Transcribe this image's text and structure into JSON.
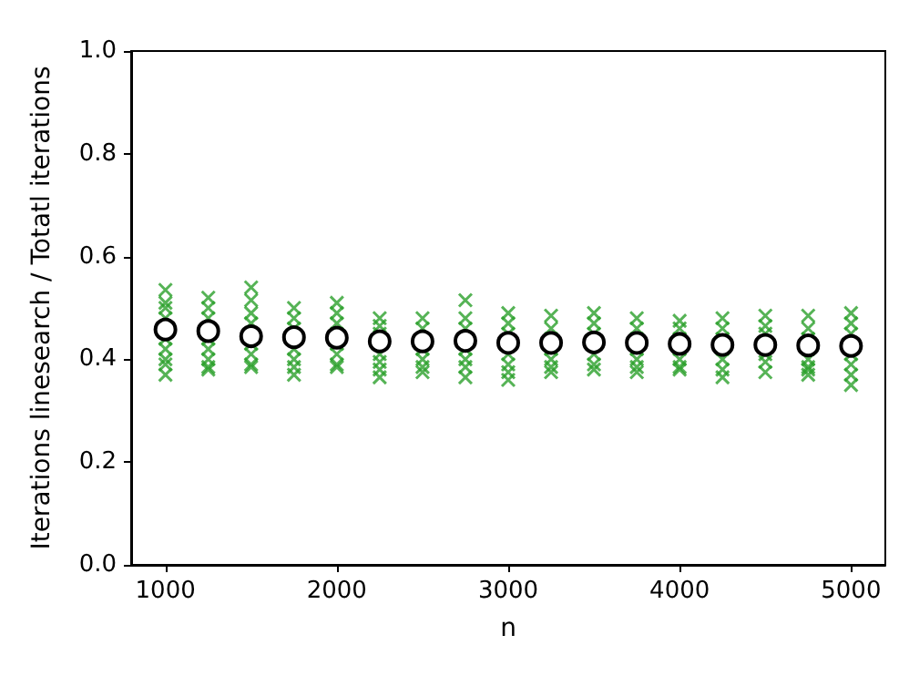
{
  "chart_data": {
    "type": "scatter",
    "xlabel": "n",
    "ylabel": "Iterations linesearch / Totatl iterations",
    "xlim": [
      800,
      5200
    ],
    "xticks": [
      1000,
      2000,
      3000,
      4000,
      5000
    ],
    "ylim": [
      0,
      1
    ],
    "yticks": [
      {
        "value": 0,
        "label": "0.0"
      },
      {
        "value": 0.2,
        "label": "0.2"
      },
      {
        "value": 0.4,
        "label": "0.4"
      },
      {
        "value": 0.6,
        "label": "0.6"
      },
      {
        "value": 0.8,
        "label": "0.8"
      },
      {
        "value": 1,
        "label": "1.0"
      }
    ],
    "grid": false,
    "series": [
      {
        "color": "#2ca02c",
        "marker": "cross",
        "x": [
          1000,
          1000,
          1000,
          1000,
          1000,
          1000,
          1000,
          1000,
          1000,
          1250,
          1250,
          1250,
          1250,
          1250,
          1250,
          1250,
          1250,
          1500,
          1500,
          1500,
          1500,
          1500,
          1500,
          1500,
          1500,
          1750,
          1750,
          1750,
          1750,
          1750,
          1750,
          1750,
          2000,
          2000,
          2000,
          2000,
          2000,
          2000,
          2000,
          2000,
          2250,
          2250,
          2250,
          2250,
          2250,
          2250,
          2250,
          2500,
          2500,
          2500,
          2500,
          2500,
          2500,
          2750,
          2750,
          2750,
          2750,
          2750,
          2750,
          2750,
          3000,
          3000,
          3000,
          3000,
          3000,
          3000,
          3000,
          3250,
          3250,
          3250,
          3250,
          3250,
          3250,
          3250,
          3500,
          3500,
          3500,
          3500,
          3500,
          3500,
          3750,
          3750,
          3750,
          3750,
          3750,
          3750,
          3750,
          4000,
          4000,
          4000,
          4000,
          4000,
          4000,
          4000,
          4250,
          4250,
          4250,
          4250,
          4250,
          4250,
          4250,
          4500,
          4500,
          4500,
          4500,
          4500,
          4500,
          4750,
          4750,
          4750,
          4750,
          4750,
          4750,
          4750,
          4750,
          5000,
          5000,
          5000,
          5000,
          5000,
          5000,
          5000
        ],
        "values": [
          0.535,
          0.51,
          0.5,
          0.48,
          0.44,
          0.42,
          0.4,
          0.39,
          0.37,
          0.52,
          0.5,
          0.48,
          0.44,
          0.42,
          0.4,
          0.385,
          0.38,
          0.54,
          0.515,
          0.49,
          0.47,
          0.43,
          0.41,
          0.39,
          0.385,
          0.5,
          0.48,
          0.46,
          0.42,
          0.4,
          0.385,
          0.37,
          0.51,
          0.49,
          0.47,
          0.45,
          0.43,
          0.41,
          0.39,
          0.385,
          0.48,
          0.465,
          0.45,
          0.41,
          0.395,
          0.38,
          0.365,
          0.48,
          0.46,
          0.42,
          0.4,
          0.385,
          0.375,
          0.515,
          0.48,
          0.46,
          0.42,
          0.4,
          0.385,
          0.365,
          0.49,
          0.47,
          0.45,
          0.41,
          0.39,
          0.375,
          0.36,
          0.485,
          0.46,
          0.44,
          0.42,
          0.4,
          0.385,
          0.375,
          0.49,
          0.47,
          0.45,
          0.41,
          0.39,
          0.38,
          0.48,
          0.46,
          0.44,
          0.42,
          0.4,
          0.385,
          0.375,
          0.475,
          0.46,
          0.44,
          0.42,
          0.4,
          0.385,
          0.38,
          0.48,
          0.46,
          0.44,
          0.42,
          0.4,
          0.38,
          0.365,
          0.485,
          0.465,
          0.45,
          0.41,
          0.395,
          0.375,
          0.485,
          0.46,
          0.44,
          0.42,
          0.4,
          0.385,
          0.38,
          0.37,
          0.49,
          0.47,
          0.45,
          0.41,
          0.39,
          0.37,
          0.35
        ]
      },
      {
        "color": "#ffffff",
        "marker": "circle",
        "x": [
          1000,
          1250,
          1500,
          1750,
          2000,
          2250,
          2500,
          2750,
          3000,
          3250,
          3500,
          3750,
          4000,
          4250,
          4500,
          4750,
          5000
        ],
        "values": [
          0.458,
          0.455,
          0.445,
          0.443,
          0.442,
          0.435,
          0.435,
          0.436,
          0.432,
          0.432,
          0.433,
          0.432,
          0.43,
          0.428,
          0.428,
          0.427,
          0.426
        ]
      }
    ]
  }
}
